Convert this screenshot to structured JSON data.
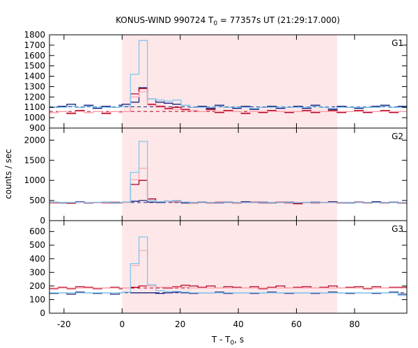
{
  "title_main": "KONUS-WIND 990724 T",
  "title_sub": "0",
  "title_rest": " = 77357s UT (21:29:17.000)",
  "ylabel": "counts / sec",
  "xlabel_main": "T - T",
  "xlabel_sub": "0",
  "xlabel_rest": ", s",
  "colors": {
    "g1_series": "#1a237e",
    "g2_series": "#b00020",
    "sum_series": "#80c8f0",
    "light_red": "#ffaab4",
    "shade": "#fde7e9",
    "dash_blue": "#1a237e",
    "dash_red": "#b00020"
  },
  "chart_data": {
    "type": "line",
    "step": true,
    "xlim": [
      -25,
      98
    ],
    "x_ticks": [
      -20,
      0,
      20,
      40,
      60,
      80
    ],
    "shaded_interval": [
      0,
      74
    ],
    "bin_edges": [
      -25,
      -22,
      -19,
      -16,
      -13,
      -10,
      -7,
      -4,
      -1,
      0,
      2.9,
      5.8,
      8.7,
      11.6,
      14.5,
      17.4,
      20.3,
      23.2,
      26.1,
      29,
      32,
      35,
      38,
      41,
      44,
      47,
      50,
      53,
      56,
      59,
      62,
      65,
      68,
      71,
      74,
      77,
      80,
      83,
      86,
      89,
      92,
      95,
      98
    ],
    "panels": [
      {
        "label": "G1",
        "ylim": [
          900,
          1800
        ],
        "yticks": [
          900,
          1000,
          1100,
          1200,
          1300,
          1400,
          1500,
          1600,
          1700,
          1800
        ],
        "background_levels": {
          "dark_blue": 1105,
          "dark_red": 1060
        },
        "series": [
          {
            "role": "dark_blue",
            "values": [
              1100,
              1110,
              1130,
              1100,
              1120,
              1090,
              1110,
              1100,
              1120,
              1130,
              1150,
              1290,
              1180,
              1150,
              1140,
              1130,
              1120,
              1100,
              1110,
              1090,
              1120,
              1100,
              1090,
              1110,
              1080,
              1100,
              1110,
              1090,
              1100,
              1110,
              1090,
              1120,
              1100,
              1080,
              1110,
              1100,
              1090,
              1100,
              1110,
              1120,
              1100,
              1110
            ]
          },
          {
            "role": "dark_red",
            "values": [
              1050,
              1060,
              1040,
              1070,
              1050,
              1060,
              1040,
              1060,
              1050,
              1060,
              1230,
              1280,
              1130,
              1110,
              1090,
              1100,
              1080,
              1070,
              1060,
              1080,
              1050,
              1070,
              1060,
              1040,
              1060,
              1050,
              1070,
              1060,
              1050,
              1060,
              1070,
              1050,
              1060,
              1070,
              1050,
              1060,
              1070,
              1050,
              1060,
              1070,
              1050,
              1060
            ]
          },
          {
            "role": "light_red",
            "values": [
              1050,
              1060,
              1050,
              1060,
              1050,
              1060,
              1050,
              1060,
              1050,
              1060,
              1200,
              1250,
              1120,
              1100,
              1080,
              1080,
              1070,
              1070,
              1060,
              1070,
              1060,
              1060,
              1060,
              1050,
              1060,
              1060,
              1060,
              1060,
              1060,
              1060,
              1060,
              1060,
              1060,
              1060,
              1060,
              1060,
              1060,
              1060,
              1060,
              1060,
              1060,
              1060
            ]
          },
          {
            "role": "sky",
            "values": [
              1100,
              1100,
              1110,
              1100,
              1110,
              1100,
              1100,
              1100,
              1110,
              1110,
              1420,
              1745,
              1180,
              1170,
              1160,
              1170,
              1120,
              1100,
              1100,
              1100,
              1110,
              1100,
              1100,
              1100,
              1090,
              1100,
              1100,
              1100,
              1100,
              1100,
              1100,
              1110,
              1100,
              1090,
              1100,
              1100,
              1100,
              1100,
              1100,
              1110,
              1100,
              1100
            ]
          }
        ]
      },
      {
        "label": "G2",
        "ylim": [
          0,
          2300
        ],
        "yticks": [
          0,
          500,
          1000,
          1500,
          2000
        ],
        "background_levels": {
          "dark_blue": 450,
          "dark_red": 450
        },
        "series": [
          {
            "role": "dark_blue",
            "values": [
              460,
              440,
              450,
              470,
              440,
              450,
              460,
              440,
              450,
              460,
              480,
              500,
              460,
              450,
              470,
              460,
              440,
              450,
              460,
              450,
              440,
              460,
              450,
              470,
              450,
              460,
              440,
              450,
              460,
              440,
              450,
              460,
              450,
              470,
              450,
              440,
              460,
              450,
              470,
              450,
              460,
              440
            ]
          },
          {
            "role": "dark_red",
            "values": [
              440,
              450,
              430,
              460,
              440,
              450,
              440,
              460,
              440,
              450,
              900,
              1000,
              540,
              470,
              480,
              490,
              460,
              440,
              450,
              440,
              460,
              450,
              440,
              450,
              460,
              440,
              450,
              460,
              440,
              420,
              450,
              440,
              450,
              460,
              440,
              450,
              460,
              440,
              450,
              440,
              450,
              440
            ]
          },
          {
            "role": "light_red",
            "values": [
              450,
              450,
              450,
              450,
              450,
              450,
              450,
              450,
              450,
              450,
              1020,
              1300,
              500,
              470,
              470,
              470,
              460,
              450,
              450,
              450,
              450,
              450,
              450,
              450,
              450,
              450,
              450,
              450,
              450,
              450,
              450,
              450,
              450,
              450,
              450,
              450,
              450,
              450,
              450,
              450,
              450,
              450
            ]
          },
          {
            "role": "sky",
            "values": [
              460,
              450,
              450,
              460,
              450,
              450,
              460,
              450,
              450,
              460,
              1200,
              1970,
              500,
              470,
              490,
              500,
              460,
              450,
              450,
              450,
              450,
              450,
              450,
              450,
              450,
              450,
              450,
              450,
              450,
              450,
              450,
              450,
              450,
              450,
              450,
              450,
              450,
              450,
              450,
              450,
              450,
              450
            ]
          }
        ]
      },
      {
        "label": "G3",
        "ylim": [
          0,
          680
        ],
        "yticks": [
          0,
          100,
          200,
          300,
          400,
          500,
          600
        ],
        "background_levels": {
          "dark_blue": 150,
          "dark_red": 185
        },
        "series": [
          {
            "role": "dark_blue",
            "values": [
              145,
              150,
              140,
              155,
              150,
              145,
              150,
              140,
              150,
              155,
              150,
              150,
              150,
              145,
              150,
              155,
              150,
              145,
              150,
              150,
              155,
              145,
              150,
              150,
              145,
              150,
              155,
              150,
              145,
              150,
              150,
              145,
              150,
              155,
              150,
              145,
              150,
              150,
              145,
              150,
              155,
              140
            ]
          },
          {
            "role": "dark_red",
            "values": [
              180,
              190,
              180,
              195,
              190,
              180,
              185,
              190,
              180,
              185,
              190,
              200,
              200,
              190,
              185,
              195,
              205,
              200,
              190,
              200,
              185,
              195,
              190,
              185,
              195,
              180,
              190,
              200,
              185,
              190,
              195,
              185,
              190,
              200,
              185,
              190,
              195,
              180,
              195,
              185,
              190,
              190
            ]
          },
          {
            "role": "light_red",
            "values": [
              185,
              185,
              185,
              185,
              185,
              185,
              185,
              185,
              185,
              185,
              350,
              460,
              200,
              190,
              190,
              190,
              190,
              185,
              185,
              185,
              185,
              185,
              185,
              185,
              185,
              185,
              185,
              185,
              185,
              185,
              185,
              185,
              185,
              185,
              185,
              185,
              185,
              185,
              185,
              185,
              185,
              185
            ]
          },
          {
            "role": "sky",
            "values": [
              150,
              150,
              150,
              150,
              150,
              150,
              150,
              150,
              150,
              155,
              365,
              560,
              210,
              165,
              160,
              160,
              155,
              150,
              150,
              150,
              150,
              150,
              150,
              150,
              150,
              150,
              150,
              150,
              150,
              150,
              150,
              150,
              150,
              150,
              150,
              150,
              150,
              150,
              150,
              150,
              150,
              130
            ]
          }
        ]
      }
    ]
  }
}
